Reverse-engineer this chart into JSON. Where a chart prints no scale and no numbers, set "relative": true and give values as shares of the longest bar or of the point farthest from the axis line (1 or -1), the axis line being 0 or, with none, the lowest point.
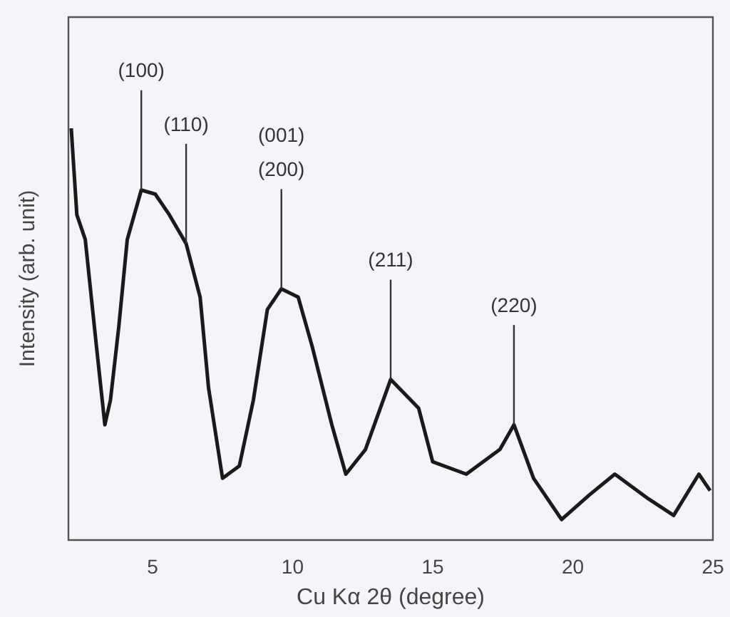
{
  "chart_data": {
    "type": "line",
    "relative": true,
    "xlabel": "Cu Kα 2θ (degree)",
    "ylabel": "Intensity (arb. unit)",
    "xlim": [
      2,
      25
    ],
    "xticks": [
      5,
      10,
      15,
      20,
      25
    ],
    "grid": false,
    "legend": false,
    "marker": "none",
    "line_style": "solid",
    "series": [
      {
        "color": "#1a1a1a",
        "x": [
          2.1,
          2.3,
          2.6,
          3.0,
          3.3,
          3.5,
          3.8,
          4.1,
          4.6,
          5.1,
          5.6,
          6.2,
          6.7,
          7.0,
          7.5,
          8.1,
          8.6,
          9.1,
          9.6,
          10.2,
          10.7,
          11.4,
          11.9,
          12.6,
          13.5,
          14.5,
          15.0,
          16.2,
          17.4,
          17.9,
          18.6,
          19.6,
          20.6,
          21.5,
          22.7,
          23.6,
          24.5,
          24.9
        ],
        "values": [
          1.0,
          0.79,
          0.73,
          0.47,
          0.28,
          0.34,
          0.52,
          0.73,
          0.85,
          0.84,
          0.79,
          0.72,
          0.59,
          0.37,
          0.15,
          0.18,
          0.34,
          0.56,
          0.61,
          0.59,
          0.47,
          0.28,
          0.16,
          0.22,
          0.39,
          0.32,
          0.19,
          0.16,
          0.22,
          0.28,
          0.15,
          0.05,
          0.11,
          0.16,
          0.1,
          0.06,
          0.16,
          0.12
        ]
      }
    ],
    "annotations": [
      {
        "text": "(100)",
        "x": 4.6,
        "y": 0.85
      },
      {
        "text": "(110)",
        "x": 6.2,
        "y": 0.72
      },
      {
        "text": "(001)\n(200)",
        "x": 9.6,
        "y": 0.61
      },
      {
        "text": "(211)",
        "x": 13.5,
        "y": 0.39
      },
      {
        "text": "(220)",
        "x": 17.9,
        "y": 0.28
      }
    ]
  }
}
